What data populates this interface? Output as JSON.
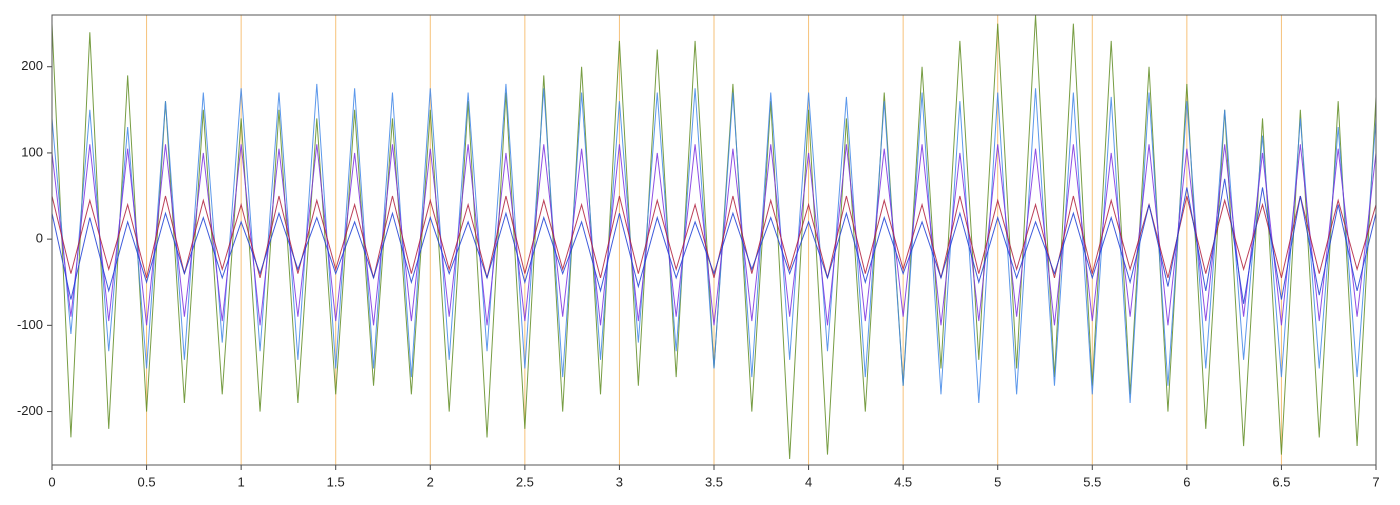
{
  "chart_data": {
    "type": "line",
    "x": [
      0,
      0.1,
      0.2,
      0.3,
      0.4,
      0.5,
      0.6,
      0.7,
      0.8,
      0.9,
      1,
      1.1,
      1.2,
      1.3,
      1.4,
      1.5,
      1.6,
      1.7,
      1.8,
      1.9,
      2,
      2.1,
      2.2,
      2.3,
      2.4,
      2.5,
      2.6,
      2.7,
      2.8,
      2.9,
      3,
      3.1,
      3.2,
      3.3,
      3.4,
      3.5,
      3.6,
      3.7,
      3.8,
      3.9,
      4,
      4.1,
      4.2,
      4.3,
      4.4,
      4.5,
      4.6,
      4.7,
      4.8,
      4.9,
      5,
      5.1,
      5.2,
      5.3,
      5.4,
      5.5,
      5.6,
      5.7,
      5.8,
      5.9,
      6,
      6.1,
      6.2,
      6.3,
      6.4,
      6.5,
      6.6,
      6.7,
      6.8,
      6.9,
      7
    ],
    "series": [
      {
        "color": "#5f8c22",
        "values": [
          250,
          -230,
          240,
          -220,
          190,
          -200,
          160,
          -190,
          150,
          -180,
          140,
          -200,
          150,
          -190,
          140,
          -180,
          150,
          -170,
          140,
          -180,
          150,
          -200,
          160,
          -230,
          170,
          -220,
          190,
          -200,
          200,
          -180,
          230,
          -170,
          220,
          -160,
          230,
          -150,
          180,
          -200,
          160,
          -255,
          150,
          -250,
          140,
          -200,
          170,
          -170,
          200,
          -150,
          230,
          -140,
          250,
          -150,
          260,
          -160,
          250,
          -170,
          230,
          -180,
          200,
          -200,
          180,
          -220,
          150,
          -240,
          140,
          -250,
          150,
          -230,
          160,
          -240,
          165
        ]
      },
      {
        "color": "#3f86e8",
        "values": [
          140,
          -110,
          150,
          -130,
          130,
          -150,
          160,
          -140,
          170,
          -120,
          175,
          -130,
          170,
          -140,
          180,
          -150,
          175,
          -150,
          170,
          -160,
          175,
          -140,
          170,
          -130,
          180,
          -150,
          175,
          -160,
          170,
          -140,
          160,
          -120,
          170,
          -130,
          175,
          -150,
          170,
          -160,
          170,
          -140,
          170,
          -130,
          165,
          -160,
          160,
          -170,
          170,
          -180,
          160,
          -190,
          170,
          -180,
          175,
          -170,
          170,
          -180,
          165,
          -190,
          170,
          -170,
          160,
          -150,
          150,
          -140,
          120,
          -160,
          140,
          -150,
          130,
          -160,
          140
        ]
      },
      {
        "color": "#7a2fe0",
        "values": [
          100,
          -90,
          110,
          -95,
          105,
          -100,
          110,
          -90,
          100,
          -95,
          110,
          -100,
          105,
          -90,
          110,
          -95,
          100,
          -100,
          110,
          -95,
          105,
          -90,
          110,
          -100,
          100,
          -95,
          110,
          -90,
          105,
          -100,
          110,
          -95,
          100,
          -90,
          110,
          -100,
          105,
          -95,
          110,
          -90,
          100,
          -100,
          110,
          -95,
          105,
          -90,
          110,
          -100,
          100,
          -95,
          110,
          -90,
          105,
          -100,
          110,
          -95,
          100,
          -90,
          110,
          -100,
          105,
          -95,
          110,
          -90,
          100,
          -100,
          110,
          -95,
          105,
          -90,
          100
        ]
      },
      {
        "color": "#b01e3c",
        "values": [
          50,
          -40,
          45,
          -35,
          40,
          -45,
          50,
          -40,
          45,
          -35,
          40,
          -45,
          50,
          -40,
          45,
          -35,
          40,
          -45,
          50,
          -40,
          45,
          -35,
          40,
          -45,
          50,
          -40,
          45,
          -35,
          40,
          -45,
          50,
          -40,
          45,
          -35,
          40,
          -45,
          50,
          -40,
          45,
          -35,
          40,
          -45,
          50,
          -40,
          45,
          -35,
          40,
          -45,
          50,
          -40,
          45,
          -35,
          40,
          -45,
          50,
          -40,
          45,
          -35,
          40,
          -45,
          50,
          -40,
          45,
          -35,
          40,
          -45,
          50,
          -40,
          45,
          -35,
          40
        ]
      },
      {
        "color": "#1d3ed6",
        "values": [
          30,
          -70,
          25,
          -60,
          20,
          -50,
          30,
          -40,
          25,
          -45,
          20,
          -40,
          30,
          -35,
          25,
          -40,
          20,
          -45,
          30,
          -50,
          25,
          -40,
          20,
          -45,
          30,
          -50,
          25,
          -40,
          20,
          -60,
          30,
          -55,
          25,
          -45,
          20,
          -40,
          30,
          -35,
          25,
          -40,
          20,
          -45,
          30,
          -50,
          25,
          -40,
          20,
          -45,
          30,
          -50,
          25,
          -45,
          20,
          -40,
          30,
          -45,
          25,
          -50,
          40,
          -55,
          60,
          -60,
          70,
          -75,
          60,
          -70,
          50,
          -65,
          40,
          -60,
          30
        ]
      }
    ],
    "xlim": [
      0,
      7
    ],
    "xticks": [
      0,
      0.5,
      1,
      1.5,
      2,
      2.5,
      3,
      3.5,
      4,
      4.5,
      5,
      5.5,
      6,
      6.5,
      7
    ],
    "ylim": [
      -262,
      260
    ],
    "yticks": [
      -200,
      -100,
      0,
      100,
      200
    ],
    "grid": true
  }
}
